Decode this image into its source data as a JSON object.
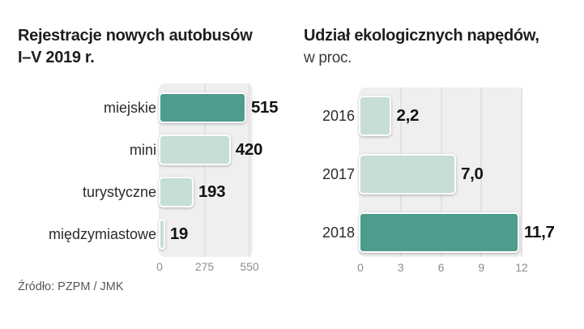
{
  "source": "Źródło: PZPM / JMK",
  "colors": {
    "accent_dark": "#4e9c8e",
    "accent_light": "#c6ded4",
    "plot_background": "#efefef",
    "gridline": "#e2e2e2",
    "tick_text": "#8d8d8d",
    "title_text": "#1e1e1e",
    "value_text": "#121212",
    "source_text": "#575757"
  },
  "chart_data": [
    {
      "type": "bar",
      "orientation": "horizontal",
      "title": "Rejestracje nowych autobusów",
      "subtitle": "I–V 2019 r.",
      "categories": [
        "miejskie",
        "mini",
        "turystyczne",
        "międzymiastowe"
      ],
      "values": [
        515,
        420,
        193,
        19
      ],
      "value_labels": [
        "515",
        "420",
        "193",
        "19"
      ],
      "xlim": [
        0,
        550
      ],
      "xticks": [
        0,
        275,
        550
      ],
      "xtick_labels": [
        "0",
        "275",
        "550"
      ],
      "grid": true,
      "legend": "none",
      "bar_colors": [
        "#4e9c8e",
        "#c6ded4",
        "#c6ded4",
        "#c6ded4"
      ]
    },
    {
      "type": "bar",
      "orientation": "horizontal",
      "title": "Udział ekologicznych napędów,",
      "subtitle": "w proc.",
      "categories": [
        "2016",
        "2017",
        "2018"
      ],
      "values": [
        2.2,
        7.0,
        11.7
      ],
      "value_labels": [
        "2,2",
        "7,0",
        "11,7"
      ],
      "xlim": [
        0,
        12
      ],
      "xticks": [
        0,
        3,
        6,
        9,
        12
      ],
      "xtick_labels": [
        "0",
        "3",
        "6",
        "9",
        "12"
      ],
      "grid": true,
      "legend": "none",
      "bar_colors": [
        "#c6ded4",
        "#c6ded4",
        "#4e9c8e"
      ]
    }
  ]
}
